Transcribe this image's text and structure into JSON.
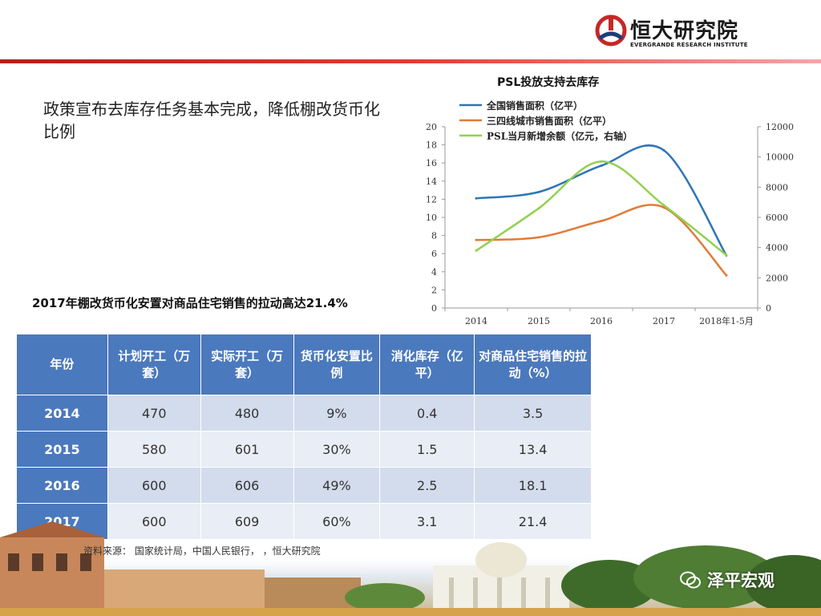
{
  "header": {
    "logo_text": "恒大研究院",
    "logo_subtitle": "EVERGRANDE RESEARCH INSTITUTE"
  },
  "headline": "政策宣布去库存任务基本完成，降低棚改货币化比例",
  "chart_data": {
    "type": "line",
    "title": "PSL投放支持去库存",
    "categories": [
      "2014",
      "2015",
      "2016",
      "2017",
      "2018年1-5月"
    ],
    "ylim_left": [
      0,
      20
    ],
    "yticks_left": [
      "0",
      "2",
      "4",
      "6",
      "8",
      "10",
      "12",
      "14",
      "16",
      "18",
      "20"
    ],
    "ylim_right": [
      0,
      12000
    ],
    "yticks_right": [
      "0",
      "2000",
      "4000",
      "6000",
      "8000",
      "10000",
      "12000"
    ],
    "series": [
      {
        "name": "全国销售面积（亿平）",
        "axis": "left",
        "color": "#2e75b6",
        "values": [
          12.1,
          12.8,
          15.7,
          17.4,
          5.8
        ]
      },
      {
        "name": "三四线城市销售面积（亿平）",
        "axis": "left",
        "color": "#e07b39",
        "values": [
          7.5,
          7.8,
          9.6,
          11.1,
          3.6
        ]
      },
      {
        "name": "PSL当月新增余额（亿元，右轴）",
        "axis": "right",
        "color": "#92d050",
        "values": [
          3800,
          6600,
          9700,
          6800,
          3500
        ]
      }
    ]
  },
  "table": {
    "title": "2017年棚改货币化安置对商品住宅销售的拉动高达21.4%",
    "headers": [
      "年份",
      "计划开工（万套）",
      "实际开工（万套）",
      "货币化安置比例",
      "消化库存（亿平）",
      "对商品住宅销售的拉动（%）"
    ],
    "rows": [
      [
        "2014",
        "470",
        "480",
        "9%",
        "0.4",
        "3.5"
      ],
      [
        "2015",
        "580",
        "601",
        "30%",
        "1.5",
        "13.4"
      ],
      [
        "2016",
        "600",
        "606",
        "49%",
        "2.5",
        "18.1"
      ],
      [
        "2017",
        "600",
        "609",
        "60%",
        "3.1",
        "21.4"
      ]
    ]
  },
  "source": "资料来源：  国家统计局，中国人民银行，  ，恒大研究院",
  "watermark": "泽平宏观",
  "colors": {
    "accent_red": "#c62828",
    "table_header": "#4b79bd",
    "row_odd": "#d3dcec",
    "row_even": "#e9edf5"
  }
}
